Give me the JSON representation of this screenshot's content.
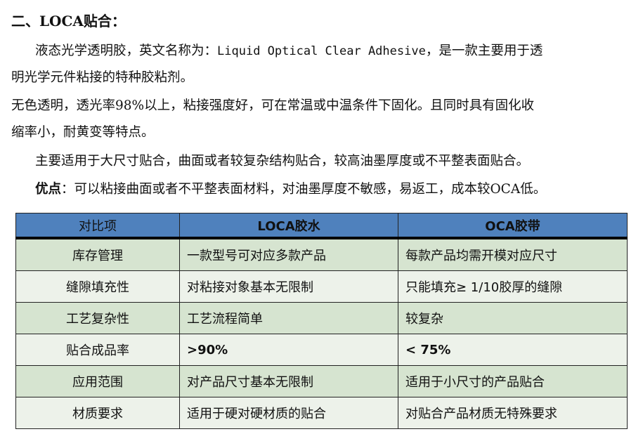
{
  "heading": "二、LOCA贴合：",
  "paragraphs": {
    "p1a": "液态光学透明胶，英文名称为：",
    "p1b": "Liquid Optical Clear Adhesive",
    "p1c": "，是一款主要用于透",
    "p1d": "明光学元件粘接的特种胶粘剂。",
    "p2a": "无色透明，透光率98%以上，粘接强度好，可在常温或中温条件下固化。且同时具有固化收",
    "p2b": "缩率小，耐黄变等特点。",
    "p3": "主要适用于大尺寸贴合，曲面或者较复杂结构贴合，较高油墨厚度或不平整表面贴合。",
    "p4label": "优点",
    "p4": "：可以粘接曲面或者不平整表面材料，对油墨厚度不敏感，易返工，成本较OCA低。"
  },
  "table": {
    "headers": [
      "对比项",
      "LOCA胶水",
      "OCA胶带"
    ],
    "rows": [
      [
        "库存管理",
        "一款型号可对应多款产品",
        "每款产品均需开模对应尺寸"
      ],
      [
        "缝隙填充性",
        "对粘接对象基本无限制",
        "只能填充≥ 1/10胶厚的缝隙"
      ],
      [
        "工艺复杂性",
        "工艺流程简单",
        "较复杂"
      ],
      [
        "贴合成品率",
        ">90%",
        "< 75%"
      ],
      [
        "应用范围",
        "对产品尺寸基本无限制",
        "适用于小尺寸的产品贴合"
      ],
      [
        "材质要求",
        "适用于硬对硬材质的贴合",
        "对贴合产品材质无特殊要求"
      ]
    ]
  },
  "colors": {
    "header": "#4f81bd",
    "row_dark": "#d6e4d0",
    "row_light": "#edf2ea"
  }
}
